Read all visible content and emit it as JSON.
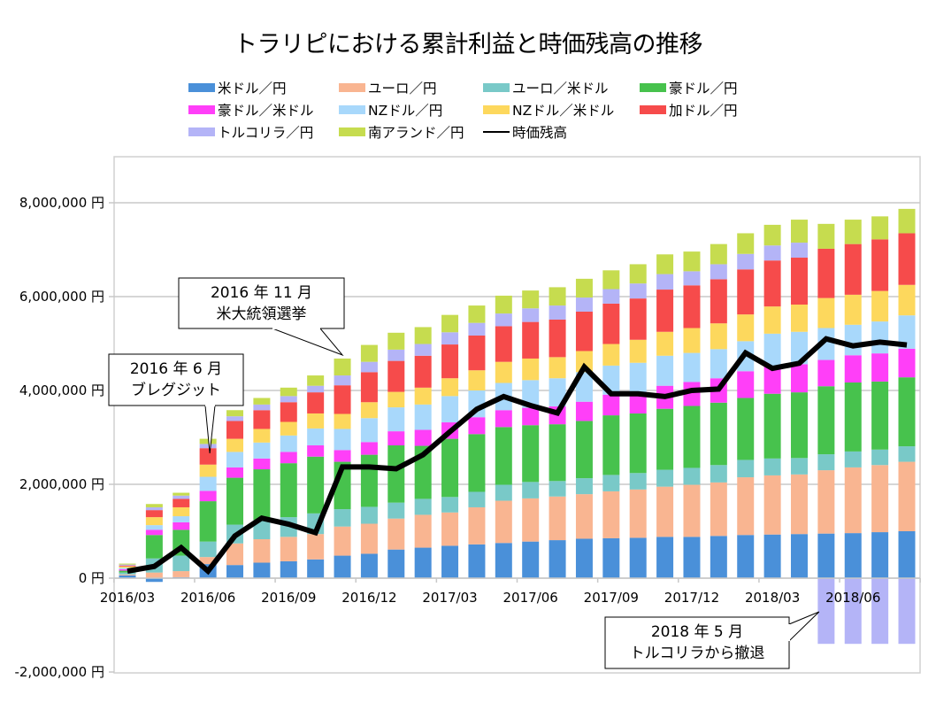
{
  "chart_data": {
    "type": "bar",
    "subtype": "stacked-bar-with-line",
    "title": "トラリピにおける累計利益と時価残高の推移",
    "xlabel": "",
    "ylabel": "",
    "ylim": [
      -2000000,
      8000000
    ],
    "y_ticks": [
      {
        "value": 8000000,
        "label": "8,000,000 円"
      },
      {
        "value": 6000000,
        "label": "6,000,000 円"
      },
      {
        "value": 4000000,
        "label": "4,000,000 円"
      },
      {
        "value": 2000000,
        "label": "2,000,000 円"
      },
      {
        "value": 0,
        "label": "0 円"
      },
      {
        "value": -2000000,
        "label": "-2,000,000 円"
      }
    ],
    "grid": true,
    "legend_position": "top",
    "categories": [
      "2016/03",
      "2016/04",
      "2016/05",
      "2016/06",
      "2016/07",
      "2016/08",
      "2016/09",
      "2016/10",
      "2016/11",
      "2016/12",
      "2017/01",
      "2017/02",
      "2017/03",
      "2017/04",
      "2017/05",
      "2017/06",
      "2017/07",
      "2017/08",
      "2017/09",
      "2017/10",
      "2017/11",
      "2017/12",
      "2018/01",
      "2018/02",
      "2018/03",
      "2018/04",
      "2018/05",
      "2018/06",
      "2018/07",
      "2018/08"
    ],
    "x_tick_labels": [
      {
        "index": 0,
        "label": "2016/03"
      },
      {
        "index": 3,
        "label": "2016/06"
      },
      {
        "index": 6,
        "label": "2016/09"
      },
      {
        "index": 9,
        "label": "2016/12"
      },
      {
        "index": 12,
        "label": "2017/03"
      },
      {
        "index": 15,
        "label": "2017/06"
      },
      {
        "index": 18,
        "label": "2017/09"
      },
      {
        "index": 21,
        "label": "2017/12"
      },
      {
        "index": 24,
        "label": "2018/03"
      },
      {
        "index": 27,
        "label": "2018/06"
      }
    ],
    "series": [
      {
        "name": "米ドル／円",
        "color": "#4a90d9",
        "values": [
          60000,
          -80000,
          20000,
          300000,
          280000,
          330000,
          360000,
          400000,
          480000,
          520000,
          610000,
          650000,
          690000,
          720000,
          750000,
          780000,
          810000,
          840000,
          850000,
          860000,
          880000,
          880000,
          900000,
          920000,
          930000,
          940000,
          950000,
          960000,
          980000,
          1000000
        ]
      },
      {
        "name": "ユーロ／円",
        "color": "#f9b591",
        "values": [
          20000,
          120000,
          130000,
          150000,
          460000,
          500000,
          520000,
          540000,
          620000,
          640000,
          660000,
          700000,
          710000,
          790000,
          900000,
          920000,
          930000,
          950000,
          1000000,
          1030000,
          1070000,
          1110000,
          1140000,
          1230000,
          1260000,
          1270000,
          1350000,
          1400000,
          1430000,
          1480000
        ]
      },
      {
        "name": "ユーロ／米ドル",
        "color": "#79c9c8",
        "values": [
          40000,
          300000,
          330000,
          330000,
          400000,
          410000,
          420000,
          440000,
          370000,
          360000,
          340000,
          340000,
          330000,
          330000,
          340000,
          350000,
          330000,
          340000,
          350000,
          350000,
          360000,
          360000,
          370000,
          370000,
          360000,
          350000,
          340000,
          340000,
          330000,
          330000
        ]
      },
      {
        "name": "豪ドル／円",
        "color": "#47c24d",
        "values": [
          40000,
          500000,
          550000,
          860000,
          1000000,
          1080000,
          1150000,
          1210000,
          1010000,
          1110000,
          1220000,
          1130000,
          1240000,
          1230000,
          1230000,
          1210000,
          1210000,
          1220000,
          1270000,
          1270000,
          1300000,
          1320000,
          1330000,
          1320000,
          1380000,
          1400000,
          1450000,
          1470000,
          1450000,
          1470000
        ]
      },
      {
        "name": "豪ドル／米ドル",
        "color": "#ff3ff8",
        "values": [
          30000,
          110000,
          160000,
          220000,
          220000,
          230000,
          240000,
          240000,
          250000,
          270000,
          300000,
          340000,
          350000,
          360000,
          360000,
          370000,
          380000,
          410000,
          440000,
          460000,
          490000,
          510000,
          520000,
          570000,
          600000,
          600000,
          560000,
          580000,
          600000,
          610000
        ]
      },
      {
        "name": "NZドル／円",
        "color": "#a8d8fb",
        "values": [
          30000,
          100000,
          130000,
          300000,
          330000,
          340000,
          350000,
          360000,
          450000,
          510000,
          510000,
          540000,
          560000,
          570000,
          580000,
          590000,
          600000,
          630000,
          620000,
          620000,
          640000,
          620000,
          620000,
          640000,
          680000,
          690000,
          680000,
          650000,
          680000,
          710000
        ]
      },
      {
        "name": "NZドル／米ドル",
        "color": "#fdd85d",
        "values": [
          30000,
          170000,
          190000,
          260000,
          280000,
          290000,
          290000,
          320000,
          320000,
          340000,
          330000,
          360000,
          380000,
          430000,
          450000,
          460000,
          450000,
          450000,
          460000,
          490000,
          510000,
          530000,
          550000,
          570000,
          580000,
          580000,
          640000,
          640000,
          650000,
          650000
        ]
      },
      {
        "name": "加ドル／円",
        "color": "#f64b4b",
        "values": [
          20000,
          150000,
          180000,
          350000,
          380000,
          400000,
          420000,
          450000,
          610000,
          640000,
          660000,
          680000,
          720000,
          740000,
          760000,
          780000,
          800000,
          840000,
          860000,
          880000,
          900000,
          910000,
          940000,
          960000,
          980000,
          1000000,
          1050000,
          1080000,
          1100000,
          1100000
        ]
      },
      {
        "name": "トルコリラ／円",
        "color": "#b4b4f7",
        "values": [
          20000,
          60000,
          70000,
          90000,
          100000,
          120000,
          130000,
          140000,
          210000,
          220000,
          240000,
          250000,
          260000,
          270000,
          270000,
          290000,
          300000,
          300000,
          310000,
          320000,
          330000,
          300000,
          320000,
          330000,
          320000,
          320000,
          -1400000,
          -1400000,
          -1400000,
          -1400000
        ]
      },
      {
        "name": "南アランド／円",
        "color": "#c6dc4f",
        "values": [
          20000,
          70000,
          60000,
          110000,
          130000,
          140000,
          180000,
          220000,
          360000,
          360000,
          360000,
          360000,
          370000,
          370000,
          380000,
          380000,
          390000,
          400000,
          400000,
          410000,
          420000,
          420000,
          430000,
          440000,
          440000,
          490000,
          530000,
          520000,
          490000,
          520000
        ]
      }
    ],
    "line": {
      "name": "時価残高",
      "color": "#000000",
      "values": [
        150000,
        250000,
        650000,
        150000,
        900000,
        1280000,
        1150000,
        970000,
        2370000,
        2370000,
        2330000,
        2630000,
        3120000,
        3600000,
        3870000,
        3680000,
        3520000,
        4500000,
        3930000,
        3930000,
        3870000,
        4000000,
        4030000,
        4800000,
        4470000,
        4580000,
        5100000,
        4950000,
        5030000,
        4970000
      ]
    },
    "annotations": [
      {
        "index": 3,
        "lines": [
          "2016 年 6 月",
          "ブレグジット"
        ]
      },
      {
        "index": 8,
        "lines": [
          "2016 年 11 月",
          "米大統領選挙"
        ]
      },
      {
        "index": 26,
        "lines": [
          "2018 年 5 月",
          "トルコリラから撤退"
        ]
      }
    ]
  }
}
